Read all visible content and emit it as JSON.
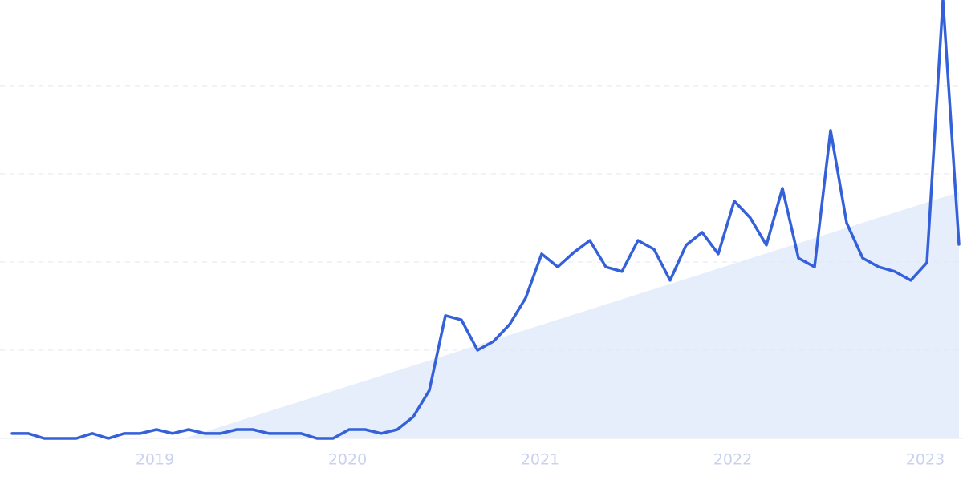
{
  "chart_data": {
    "type": "line",
    "categories": [
      null,
      null,
      null,
      null,
      null,
      null,
      null,
      null,
      null,
      "2019",
      null,
      null,
      null,
      null,
      null,
      null,
      null,
      null,
      null,
      null,
      null,
      "2020",
      null,
      null,
      null,
      null,
      null,
      null,
      null,
      null,
      null,
      null,
      null,
      "2021",
      null,
      null,
      null,
      null,
      null,
      null,
      null,
      null,
      null,
      null,
      null,
      "2022",
      null,
      null,
      null,
      null,
      null,
      null,
      null,
      null,
      null,
      null,
      null,
      "2023",
      null,
      null
    ],
    "series": [
      {
        "color": "#3461d9",
        "values": [
          1.4,
          1.4,
          0,
          0,
          0,
          1.4,
          0,
          1.4,
          1.4,
          2.5,
          1.4,
          2.5,
          1.4,
          1.4,
          2.5,
          2.5,
          1.4,
          1.4,
          1.4,
          0,
          0,
          2.5,
          2.5,
          1.4,
          2.5,
          6.1,
          13.6,
          34.8,
          33.6,
          25,
          27.5,
          32.3,
          39.8,
          52.3,
          48.6,
          52.7,
          56.1,
          48.6,
          47.3,
          56.1,
          53.6,
          44.8,
          54.8,
          58.4,
          52.3,
          67.3,
          62.5,
          54.8,
          70.9,
          51.1,
          48.6,
          87.3,
          61.1,
          51.1,
          48.6,
          47.3,
          44.8,
          49.8,
          124.3,
          55.0
        ]
      }
    ],
    "trend_values": [
      -15.5,
      69.8
    ],
    "trend_color": "#dde8fb",
    "ylim": [
      0,
      124.3
    ],
    "yticks": [
      25,
      50,
      75,
      100
    ],
    "grid": true
  }
}
